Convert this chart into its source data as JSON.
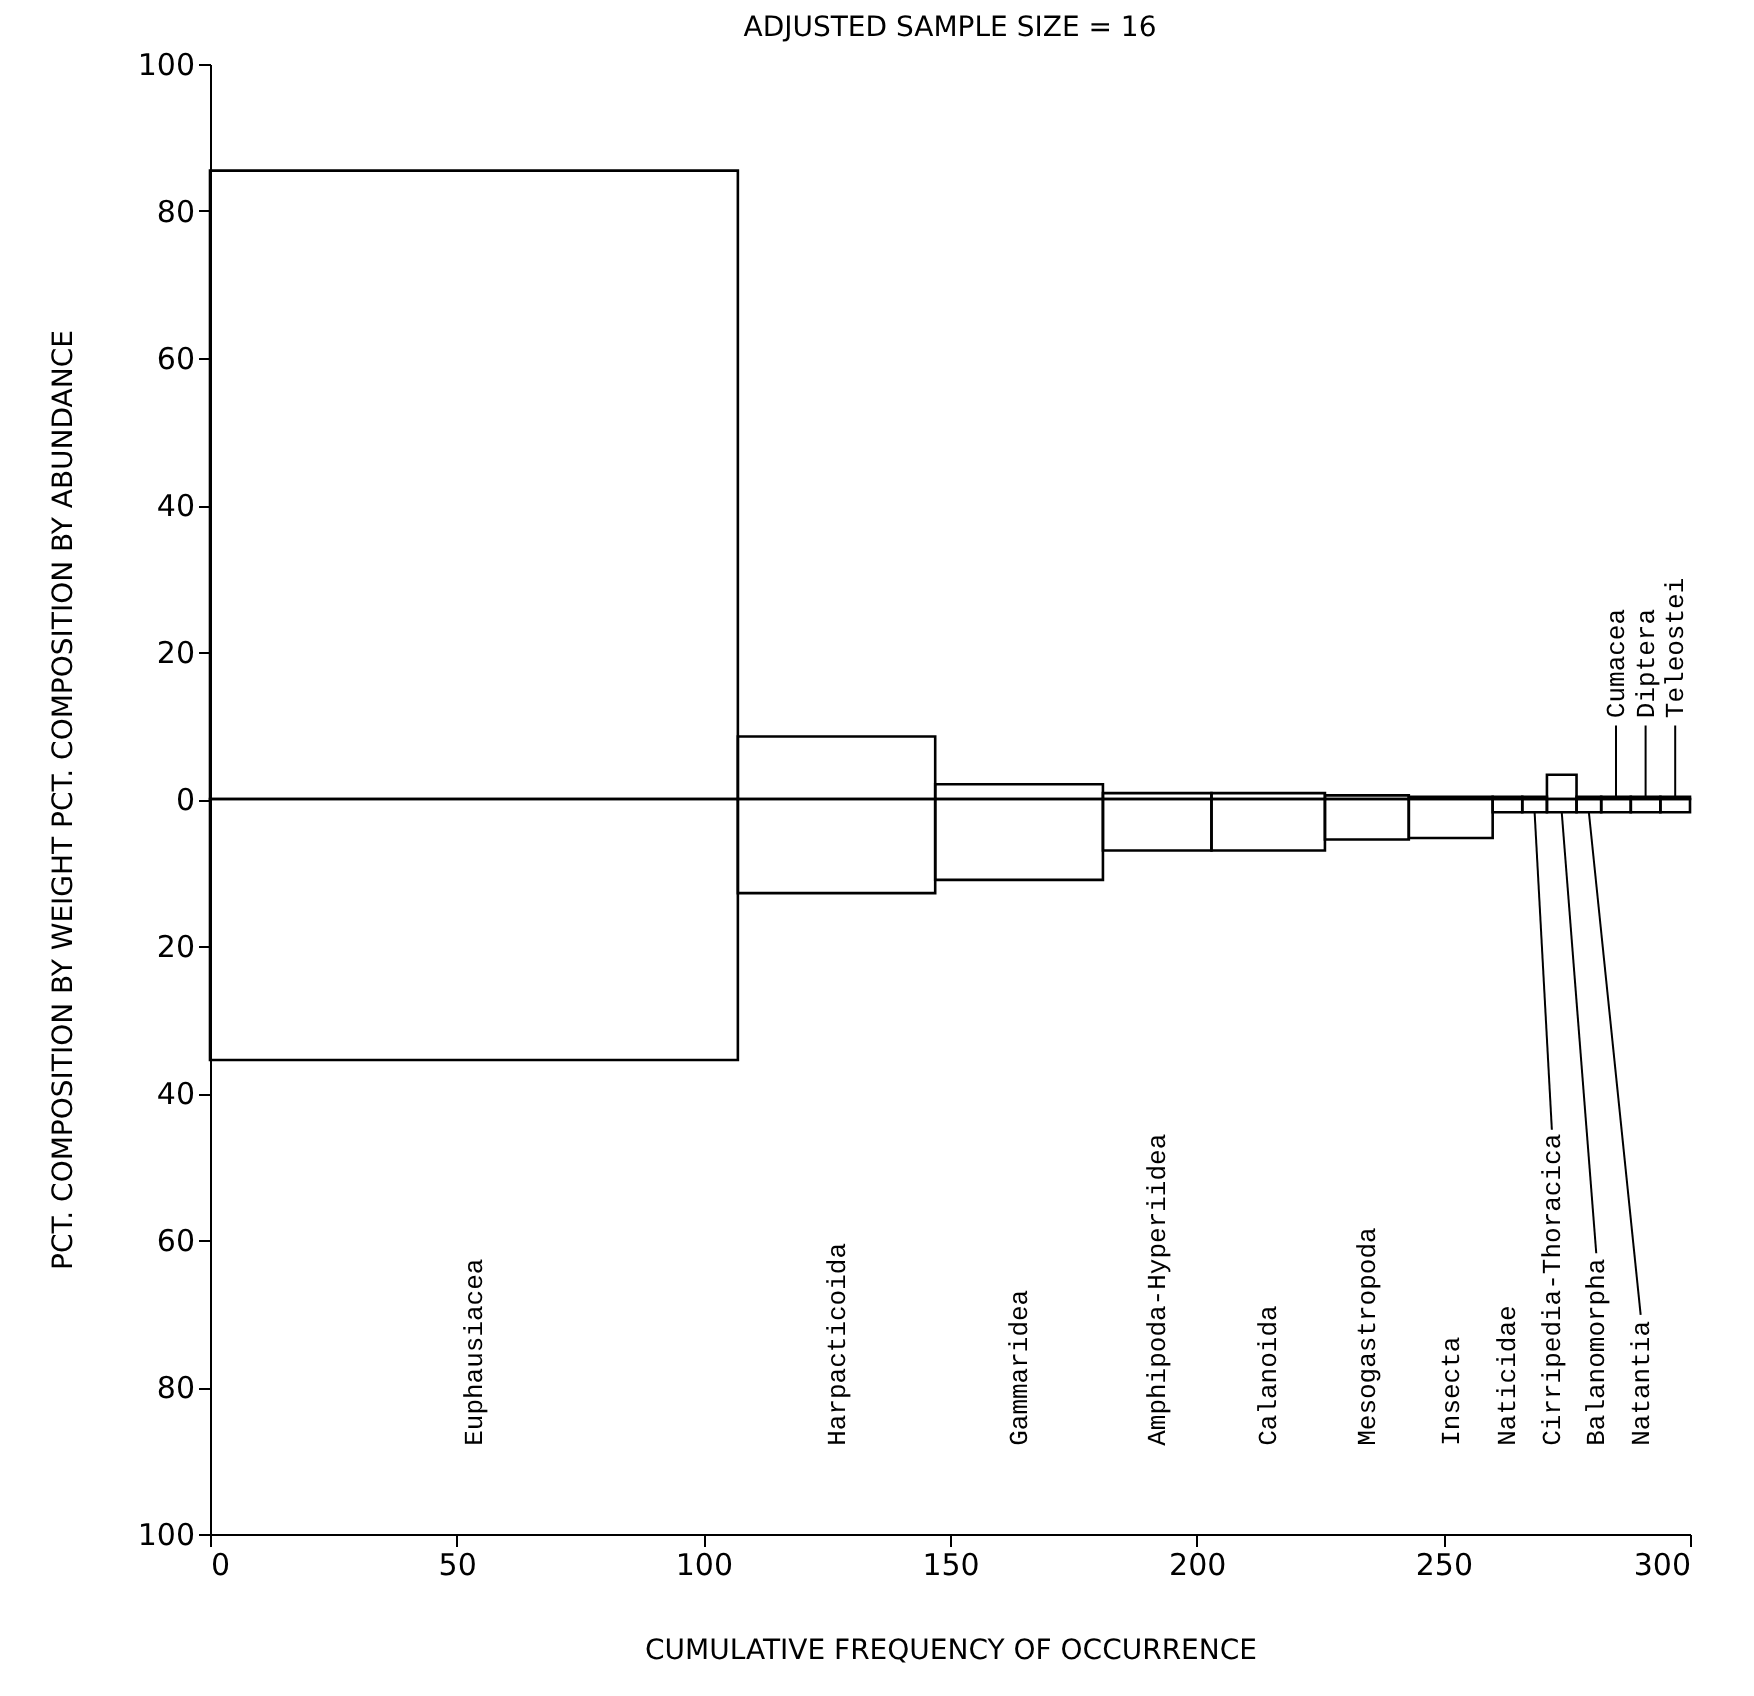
{
  "chart_data": {
    "type": "histogram",
    "title": "ADJUSTED SAMPLE SIZE = 16",
    "xlabel": "CUMULATIVE FREQUENCY OF OCCURRENCE",
    "ylabel": "PCT. COMPOSITION BY WEIGHT    PCT. COMPOSITION BY ABUNDANCE",
    "bins": [
      0,
      107,
      147,
      181,
      203,
      226,
      243,
      260,
      266,
      271,
      277,
      282,
      288,
      294,
      300
    ],
    "series": [
      {
        "color": "#000000",
        "values": [
          85.5,
          8.5,
          2,
          0.8,
          0.8,
          0.5,
          0.3,
          0.3,
          0.3,
          3.3,
          0.3,
          0.3,
          0.3,
          0.3
        ]
      },
      {
        "color": "#000000",
        "values": [
          -35.5,
          -12.8,
          -11,
          -7,
          -7,
          -5.5,
          -5.3,
          -1.8,
          -1.8,
          -1.8,
          -1.8,
          -1.8,
          -1.8,
          -1.8
        ]
      }
    ],
    "xlim": [
      0,
      300
    ],
    "xticks": [
      0,
      50,
      100,
      150,
      200,
      250,
      300
    ],
    "ylim": [
      -100,
      100
    ],
    "yticks": [
      {
        "value": -100,
        "label": "100"
      },
      {
        "value": -80,
        "label": "80"
      },
      {
        "value": -60,
        "label": "60"
      },
      {
        "value": -40,
        "label": "40"
      },
      {
        "value": -20,
        "label": "20"
      },
      0,
      20,
      40,
      60,
      80,
      100
    ],
    "grid": false,
    "annotations": [
      "Euphausiacea",
      "Harpacticoida",
      "Gammaridea",
      "Amphipoda-Hyperiidea",
      "Calanoida",
      "Mesogastropoda",
      "Insecta",
      "Naticidae",
      {
        "text": "Cirripedia-Thoracica",
        "x": 268.5,
        "y": -1.8
      },
      {
        "text": "Balanomorpha",
        "x": 274,
        "y": -1.8
      },
      {
        "text": "Natantia",
        "x": 279.5,
        "y": -1.8
      },
      {
        "text": "Cumacea",
        "x": 285,
        "y": 0.3
      },
      {
        "text": "Diptera",
        "x": 291,
        "y": 0.3
      },
      {
        "text": "Teleostei",
        "x": 297,
        "y": 0.3
      }
    ]
  }
}
